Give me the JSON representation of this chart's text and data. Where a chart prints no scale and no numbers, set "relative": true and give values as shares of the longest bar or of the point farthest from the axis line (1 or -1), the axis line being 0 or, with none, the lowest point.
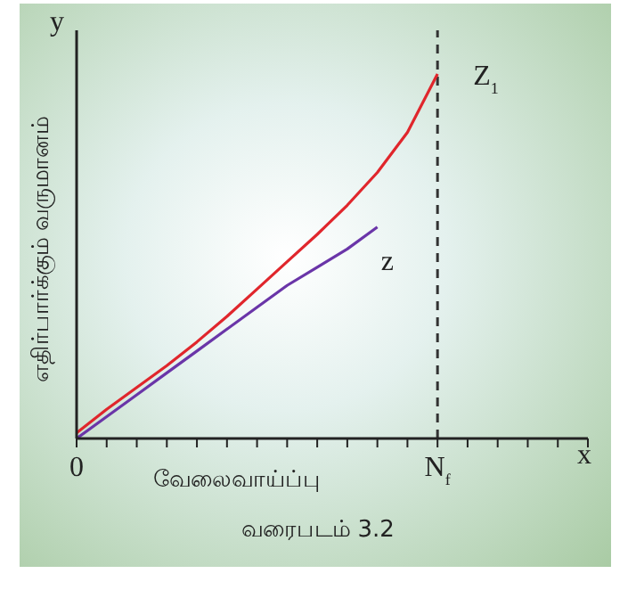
{
  "chart_data": {
    "type": "line",
    "relative": true,
    "ylabel": "எதிர்பார்க்கும் வருமானம்",
    "xlabel": "வேலைவாய்ப்பு",
    "categories": [
      "0",
      null,
      null,
      null,
      null,
      null,
      null,
      null,
      null,
      null,
      null,
      null,
      "N$_{f}$",
      null,
      null,
      null,
      null,
      null
    ],
    "series": [
      {
        "name": "Z$_{1}$",
        "color": "#e0262c",
        "values": [
          0.015,
          0.08,
          0.14,
          0.2,
          0.265,
          0.335,
          0.41,
          0.485,
          0.56,
          0.64,
          0.73,
          0.84,
          1.0,
          null,
          null,
          null,
          null,
          null
        ]
      },
      {
        "name": "z",
        "color": "#6a35a8",
        "values": [
          0,
          0.06,
          0.12,
          0.18,
          0.24,
          0.3,
          0.36,
          0.42,
          0.47,
          0.52,
          0.58,
          null,
          null,
          null,
          null,
          null,
          null,
          null
        ]
      }
    ],
    "ref_lines": [
      {
        "axis": "x",
        "value": "N$_{f}$",
        "color": "#333333",
        "line_style": "dashed"
      }
    ],
    "annotations": [
      "y",
      "x",
      "வரைபடம் 3.2"
    ],
    "grid": false,
    "legend": false,
    "marker": "none",
    "line_style": "solid"
  }
}
